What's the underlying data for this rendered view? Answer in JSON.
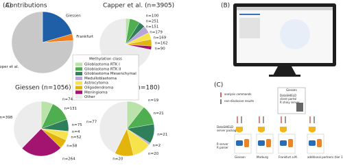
{
  "panels": [
    "(A)",
    "(B)",
    "(C)"
  ],
  "chart_data": [
    {
      "type": "pie",
      "title": "Contributions",
      "categories": [
        "Giessen",
        "Frankfurt",
        "Capper et al."
      ],
      "values": [
        1056,
        180,
        3905
      ],
      "colors": [
        "#1f5fa8",
        "#f07f1e",
        "#c8c8c8"
      ]
    },
    {
      "type": "pie",
      "title": "Capper et al. (n=3905)",
      "values": [
        100,
        251,
        151,
        179,
        169,
        162,
        90,
        2797
      ],
      "value_labels": [
        "n=100",
        "n=251",
        "n=151",
        "n=179",
        "n=169",
        "n=162",
        "n=90",
        "n=2797"
      ],
      "colors": [
        "#b9e3a9",
        "#4fae4f",
        "#2f7f5a",
        "#b7a6dc",
        "#f6e24a",
        "#e3b40c",
        "#a2146f",
        "#ececec"
      ]
    },
    {
      "type": "pie",
      "title": "Giessen (n=1056)",
      "values": [
        74,
        131,
        75,
        4,
        52,
        58,
        264,
        398
      ],
      "value_labels": [
        "n=74",
        "n=131",
        "n=75",
        "n=4",
        "n=52",
        "n=58",
        "n=264",
        "n=398"
      ],
      "colors": [
        "#b9e3a9",
        "#4fae4f",
        "#2f7f5a",
        "#b7a6dc",
        "#f6e24a",
        "#e3b40c",
        "#a2146f",
        "#ececec"
      ]
    },
    {
      "type": "pie",
      "title": "Frankfurt (n=180)",
      "values": [
        19,
        21,
        21,
        2,
        20,
        20,
        77
      ],
      "value_labels": [
        "n=19",
        "n=21",
        "n=21",
        "n=2",
        "n=20",
        "n=20",
        "n=77"
      ],
      "colors": [
        "#b9e3a9",
        "#4fae4f",
        "#2f7f5a",
        "#b7a6dc",
        "#f6e24a",
        "#e3b40c",
        "#ececec"
      ]
    }
  ],
  "legend": {
    "title": "Methylation class",
    "items": [
      {
        "name": "Glioblastoma RTK I",
        "color": "#b9e3a9"
      },
      {
        "name": "Glioblastoma RTK II",
        "color": "#4fae4f"
      },
      {
        "name": "Glioblastoma Mesenchymal",
        "color": "#2f7f5a"
      },
      {
        "name": "Medulloblastoma",
        "color": "#b7a6dc"
      },
      {
        "name": "Astrocytoma",
        "color": "#f6e24a"
      },
      {
        "name": "Oligodendroma",
        "color": "#e3b40c"
      },
      {
        "name": "Meningioma",
        "color": "#a2146f"
      },
      {
        "name": "Other",
        "color": "#ececec"
      }
    ]
  },
  "diagram": {
    "arrows": [
      "analysis commands",
      "non-disclosive results"
    ],
    "client": [
      "Giessen",
      "DataSHIELD",
      "client portal",
      "R shiny server"
    ],
    "server": [
      "DataSHIELD",
      "server packages"
    ],
    "rserver": [
      "R server",
      "R parser"
    ],
    "sites": [
      "Giessen",
      "Marburg",
      "Frankfurt a.M.",
      "additional partners (tier 1)"
    ]
  }
}
